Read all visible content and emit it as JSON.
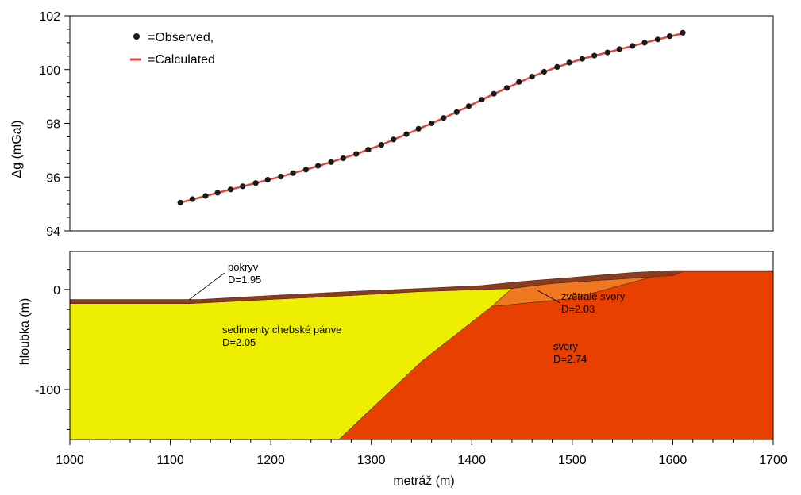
{
  "chart_data": [
    {
      "type": "scatter",
      "ylabel": "Δg (mGal)",
      "xlim": [
        1000,
        1700
      ],
      "ylim": [
        94,
        102
      ],
      "yticks": [
        94,
        96,
        98,
        100,
        102
      ],
      "grid": false,
      "legend_position": "top-left",
      "series": [
        {
          "name": "=Observed,",
          "kind": "points",
          "color": "#1a1a1a",
          "x": [
            1110,
            1122,
            1135,
            1147,
            1160,
            1172,
            1185,
            1197,
            1210,
            1222,
            1235,
            1247,
            1260,
            1272,
            1285,
            1297,
            1310,
            1322,
            1335,
            1347,
            1360,
            1372,
            1385,
            1397,
            1410,
            1422,
            1435,
            1447,
            1460,
            1472,
            1485,
            1497,
            1510,
            1522,
            1535,
            1547,
            1560,
            1572,
            1585,
            1597,
            1610
          ],
          "y": [
            95.05,
            95.18,
            95.3,
            95.42,
            95.54,
            95.66,
            95.78,
            95.9,
            96.02,
            96.15,
            96.28,
            96.42,
            96.56,
            96.7,
            96.86,
            97.02,
            97.2,
            97.4,
            97.6,
            97.8,
            98.0,
            98.2,
            98.42,
            98.64,
            98.88,
            99.1,
            99.32,
            99.54,
            99.74,
            99.92,
            100.1,
            100.26,
            100.4,
            100.52,
            100.64,
            100.76,
            100.88,
            101.0,
            101.12,
            101.24,
            101.37
          ]
        },
        {
          "name": "=Calculated",
          "kind": "line",
          "color": "#e0463c",
          "x": [
            1110,
            1135,
            1160,
            1185,
            1210,
            1235,
            1260,
            1285,
            1310,
            1335,
            1360,
            1385,
            1410,
            1435,
            1460,
            1485,
            1510,
            1535,
            1560,
            1585,
            1610
          ],
          "y": [
            95.05,
            95.3,
            95.54,
            95.78,
            96.02,
            96.28,
            96.56,
            96.86,
            97.2,
            97.6,
            98.0,
            98.42,
            98.88,
            99.32,
            99.74,
            100.1,
            100.4,
            100.64,
            100.88,
            101.12,
            101.35
          ]
        }
      ]
    },
    {
      "type": "area",
      "xlabel": "metráž (m)",
      "ylabel": "hloubka (m)",
      "xlim": [
        1000,
        1700
      ],
      "ylim": [
        -150,
        38
      ],
      "xticks": [
        1000,
        1100,
        1200,
        1300,
        1400,
        1500,
        1600,
        1700
      ],
      "yticks": [
        0,
        -100
      ],
      "grid": false,
      "layers": [
        {
          "id": "sedimenty",
          "name": "sedimenty chebské pánve",
          "density_label": "D=2.05",
          "color": "#eeee00",
          "polygon": [
            [
              1000,
              -14
            ],
            [
              1120,
              -14
            ],
            [
              1200,
              -10
            ],
            [
              1280,
              -6
            ],
            [
              1350,
              -2
            ],
            [
              1410,
              0
            ],
            [
              1440,
              1
            ],
            [
              1420,
              -17
            ],
            [
              1350,
              -72
            ],
            [
              1268,
              -150
            ],
            [
              1000,
              -150
            ]
          ]
        },
        {
          "id": "svory",
          "name": "svory",
          "density_label": "D=2.74",
          "color": "#e84000",
          "polygon": [
            [
              1268,
              -150
            ],
            [
              1350,
              -72
            ],
            [
              1420,
              -17
            ],
            [
              1500,
              -9
            ],
            [
              1600,
              18
            ],
            [
              1700,
              18
            ],
            [
              1700,
              -150
            ]
          ]
        },
        {
          "id": "zvetrale",
          "name": "zvětralé svory",
          "density_label": "D=2.03",
          "color": "#f07820",
          "polygon": [
            [
              1420,
              -17
            ],
            [
              1440,
              1
            ],
            [
              1480,
              6
            ],
            [
              1540,
              10
            ],
            [
              1600,
              14
            ],
            [
              1610,
              18
            ],
            [
              1600,
              18
            ],
            [
              1500,
              -9
            ]
          ]
        },
        {
          "id": "pokryv",
          "name": "pokryv",
          "density_label": "D=1.95",
          "color": "#8a3c1e",
          "polygon": [
            [
              1000,
              -10
            ],
            [
              1130,
              -10
            ],
            [
              1200,
              -6
            ],
            [
              1280,
              -2
            ],
            [
              1350,
              1
            ],
            [
              1410,
              4
            ],
            [
              1450,
              8
            ],
            [
              1500,
              12
            ],
            [
              1560,
              17
            ],
            [
              1600,
              19
            ],
            [
              1700,
              19
            ],
            [
              1700,
              18
            ],
            [
              1610,
              18
            ],
            [
              1600,
              14
            ],
            [
              1540,
              10
            ],
            [
              1480,
              6
            ],
            [
              1440,
              1
            ],
            [
              1410,
              0
            ],
            [
              1350,
              -2
            ],
            [
              1280,
              -6
            ],
            [
              1200,
              -10
            ],
            [
              1120,
              -14
            ],
            [
              1000,
              -14
            ]
          ]
        }
      ]
    }
  ]
}
